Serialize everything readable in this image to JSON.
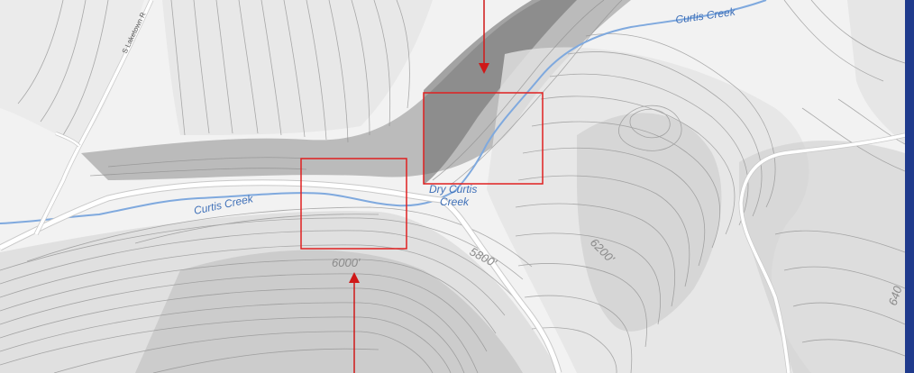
{
  "map": {
    "colors": {
      "background": "#f2f2f2",
      "water": "#7fa9de",
      "water_label": "#3f70b8",
      "contour": "#8c8c8c",
      "contour_label": "#8a8a8a",
      "road": "#ffffff",
      "road_casing": "#c9c9c9",
      "highlight_box": "#e02020",
      "arrow": "#d01818",
      "border": "#1f3a8c"
    },
    "creek_labels": [
      "Curtis Creek",
      "Curtis Creek",
      "Dry Curtis",
      "Creek"
    ],
    "road_labels": [
      "S Laketown R"
    ],
    "contour_labels": [
      "6000'",
      "5800'",
      "6200'",
      "640"
    ],
    "annotations": {
      "boxes": [
        "box-upper-right",
        "box-lower-left"
      ],
      "arrows": [
        "arrow-from-top",
        "arrow-from-bottom"
      ]
    }
  }
}
